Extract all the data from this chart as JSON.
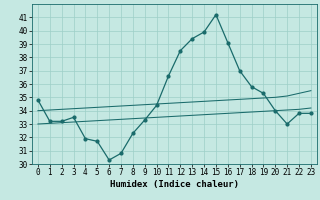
{
  "xlabel": "Humidex (Indice chaleur)",
  "x": [
    0,
    1,
    2,
    3,
    4,
    5,
    6,
    7,
    8,
    9,
    10,
    11,
    12,
    13,
    14,
    15,
    16,
    17,
    18,
    19,
    20,
    21,
    22,
    23
  ],
  "y_main": [
    34.8,
    33.2,
    33.2,
    33.5,
    31.9,
    31.7,
    30.3,
    30.8,
    32.3,
    33.3,
    34.4,
    36.6,
    38.5,
    39.4,
    39.9,
    41.2,
    39.1,
    37.0,
    35.8,
    35.3,
    34.0,
    33.0,
    33.8,
    33.8
  ],
  "y_upper": [
    34.0,
    34.05,
    34.1,
    34.15,
    34.2,
    34.25,
    34.3,
    34.35,
    34.4,
    34.45,
    34.5,
    34.55,
    34.6,
    34.65,
    34.7,
    34.75,
    34.8,
    34.85,
    34.9,
    34.95,
    35.0,
    35.1,
    35.3,
    35.5
  ],
  "y_lower": [
    33.0,
    33.05,
    33.1,
    33.15,
    33.2,
    33.25,
    33.3,
    33.35,
    33.4,
    33.45,
    33.5,
    33.55,
    33.6,
    33.65,
    33.7,
    33.75,
    33.8,
    33.85,
    33.9,
    33.95,
    34.0,
    34.05,
    34.1,
    34.2
  ],
  "bg_color": "#c5e8e2",
  "line_color": "#1a6b6b",
  "grid_color": "#9ecfc7",
  "ylim": [
    30,
    42
  ],
  "yticks": [
    30,
    31,
    32,
    33,
    34,
    35,
    36,
    37,
    38,
    39,
    40,
    41
  ],
  "xlim": [
    -0.5,
    23.5
  ],
  "label_fontsize": 6.5,
  "tick_fontsize": 5.5
}
